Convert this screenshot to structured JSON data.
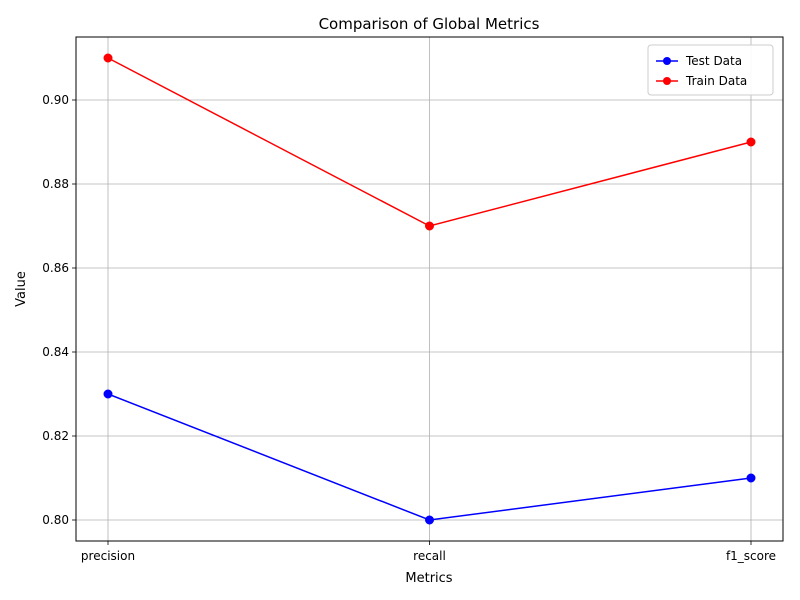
{
  "chart_data": {
    "type": "line",
    "title": "Comparison of Global Metrics",
    "xlabel": "Metrics",
    "ylabel": "Value",
    "categories": [
      "precision",
      "recall",
      "f1_score"
    ],
    "series": [
      {
        "name": "Test Data",
        "color": "#0000ff",
        "marker": "circle",
        "values": [
          0.83,
          0.8,
          0.81
        ]
      },
      {
        "name": "Train Data",
        "color": "#ff0000",
        "marker": "circle",
        "values": [
          0.91,
          0.87,
          0.89
        ]
      }
    ],
    "ylim": [
      0.795,
      0.915
    ],
    "yticks": [
      "0.80",
      "0.82",
      "0.84",
      "0.86",
      "0.88",
      "0.90"
    ],
    "grid": true,
    "legend_position": "top-right"
  }
}
